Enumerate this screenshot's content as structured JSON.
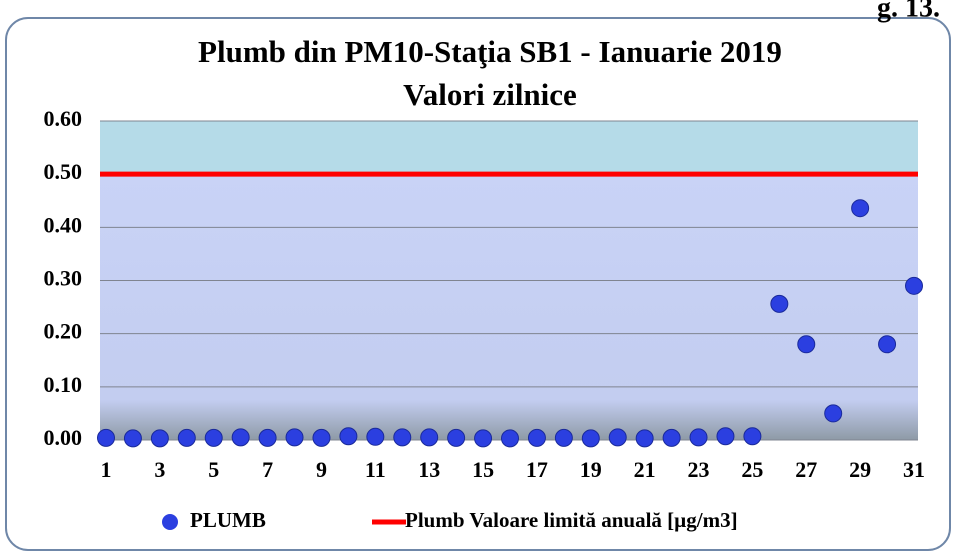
{
  "chart_data": {
    "type": "scatter",
    "title": "Plumb din PM10-Staţia SB1 - Ianuarie 2019",
    "subtitle": "Valori zilnice",
    "annotation": "g. 13.",
    "x": [
      1,
      2,
      3,
      4,
      5,
      6,
      7,
      8,
      9,
      10,
      11,
      12,
      13,
      14,
      15,
      16,
      17,
      18,
      19,
      20,
      21,
      22,
      23,
      24,
      25,
      26,
      27,
      28,
      29,
      30,
      31
    ],
    "series": [
      {
        "name": "PLUMB",
        "color": "#2b3fe0",
        "values": [
          0.004,
          0.003,
          0.003,
          0.004,
          0.004,
          0.005,
          0.004,
          0.005,
          0.004,
          0.007,
          0.006,
          0.005,
          0.005,
          0.004,
          0.003,
          0.003,
          0.004,
          0.004,
          0.003,
          0.005,
          0.003,
          0.004,
          0.005,
          0.007,
          0.007,
          0.256,
          0.18,
          0.05,
          0.436,
          0.18,
          0.29
        ]
      }
    ],
    "limit": {
      "name": "Plumb Valoare limită anuală [µg/m3]",
      "value": 0.5,
      "color": "#ff0000"
    },
    "xlim": [
      1,
      31
    ],
    "xticks": [
      1,
      3,
      5,
      7,
      9,
      11,
      13,
      15,
      17,
      19,
      21,
      23,
      25,
      27,
      29,
      31
    ],
    "ylim": [
      0,
      0.6
    ],
    "yticks": [
      {
        "value": 0,
        "label": "0.00"
      },
      {
        "value": 0.1,
        "label": "0.10"
      },
      {
        "value": 0.2,
        "label": "0.20"
      },
      {
        "value": 0.3,
        "label": "0.30"
      },
      {
        "value": 0.4,
        "label": "0.40"
      },
      {
        "value": 0.5,
        "label": "0.50"
      },
      {
        "value": 0.6,
        "label": "0.60"
      }
    ],
    "grid": true,
    "legend": "bottom"
  }
}
